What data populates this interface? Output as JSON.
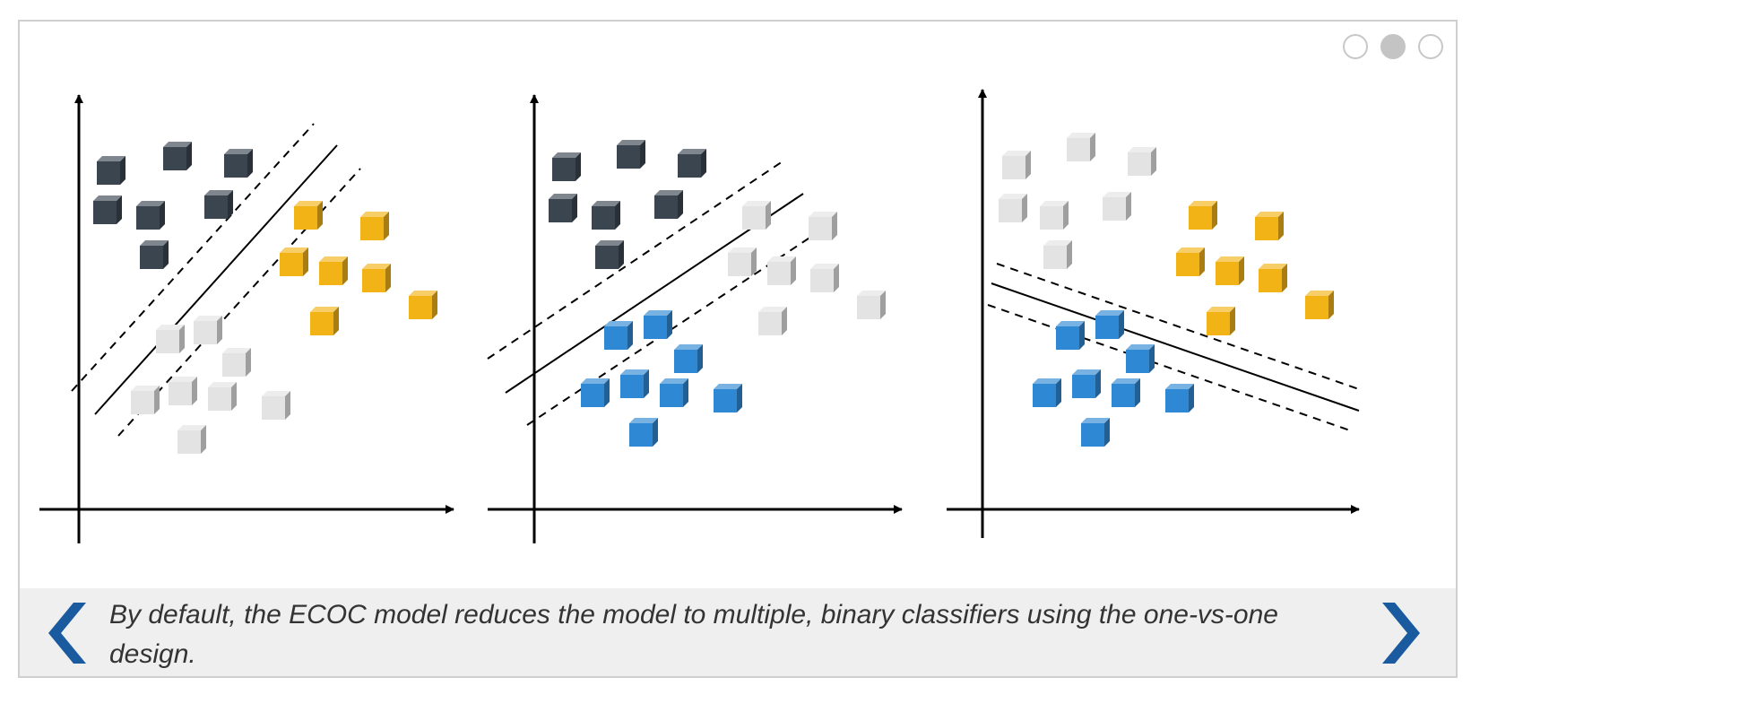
{
  "pagination": {
    "dots": [
      {
        "state": "inactive"
      },
      {
        "state": "active"
      },
      {
        "state": "inactive"
      }
    ]
  },
  "caption": "By default, the ECOC model reduces the model to multiple, binary classifiers using the one-vs-one design.",
  "navigation": {
    "prev_icon": "chevron-left-icon",
    "next_icon": "chevron-right-icon"
  },
  "colors": {
    "dark_class": "#3b4550",
    "yellow_class": "#f2b316",
    "blue_class": "#2f88d4",
    "inactive_class": "#e3e3e3",
    "arrow_blue": "#1a5a9e",
    "caption_bar": "#efefef"
  },
  "panels": [
    {
      "name": "dark-vs-yellow",
      "classes_compared": [
        "dark",
        "yellow"
      ],
      "ignored_class": "blue"
    },
    {
      "name": "dark-vs-blue",
      "classes_compared": [
        "dark",
        "blue"
      ],
      "ignored_class": "yellow"
    },
    {
      "name": "yellow-vs-blue",
      "classes_compared": [
        "yellow",
        "blue"
      ],
      "ignored_class": "dark"
    }
  ]
}
